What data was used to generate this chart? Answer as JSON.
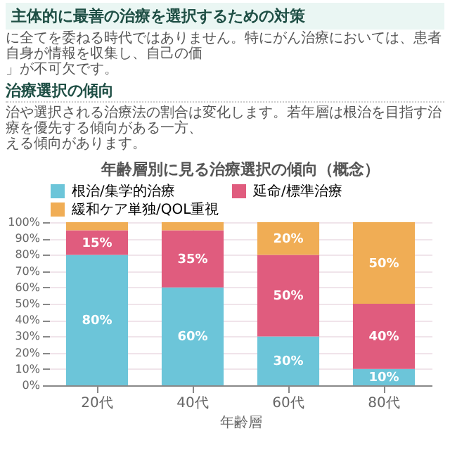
{
  "chart_data": {
    "type": "bar",
    "stacked": true,
    "title": "年齢層別に見る治療選択の傾向（概念）",
    "xlabel": "年齢層",
    "annotations": [
      "主体的に最善の治療を選択するための対策",
      "に全てを委ねる時代ではありません。特にがん治療においては、患者自身が情報を収集し、自己の価",
      "」が不可欠です。",
      "治療選択の傾向",
      "治や選択される治療法の割合は変化します。若年層は根治を目指す治療を優先する傾向がある一方、",
      "える傾向があります。"
    ],
    "categories": [
      "20代",
      "40代",
      "60代",
      "80代"
    ],
    "series": [
      {
        "name": "根治/集学的治療",
        "color": "#6cc5d9",
        "values": [
          80,
          60,
          30,
          10
        ],
        "value_labels": [
          "80%",
          "60%",
          "30%",
          "10%"
        ]
      },
      {
        "name": "延命/標準治療",
        "color": "#e05c7e",
        "values": [
          15,
          35,
          50,
          40
        ],
        "value_labels": [
          "15%",
          "35%",
          "50%",
          "40%"
        ]
      },
      {
        "name": "緩和ケア単独/QOL重視",
        "color": "#f0ad55",
        "values": [
          5,
          5,
          20,
          50
        ],
        "value_labels": [
          null,
          null,
          "20%",
          "50%"
        ]
      }
    ],
    "ylim": [
      0,
      100
    ],
    "yticks": [
      {
        "value": 0,
        "label": "0%"
      },
      {
        "value": 10,
        "label": "10%"
      },
      {
        "value": 20,
        "label": "20%"
      },
      {
        "value": 30,
        "label": "30%"
      },
      {
        "value": 40,
        "label": "40%"
      },
      {
        "value": 50,
        "label": "50%"
      },
      {
        "value": 60,
        "label": "60%"
      },
      {
        "value": 70,
        "label": "70%"
      },
      {
        "value": 80,
        "label": "80%"
      },
      {
        "value": 90,
        "label": "90%"
      },
      {
        "value": 100,
        "label": "100%"
      }
    ],
    "grid": true,
    "legend": "top"
  }
}
